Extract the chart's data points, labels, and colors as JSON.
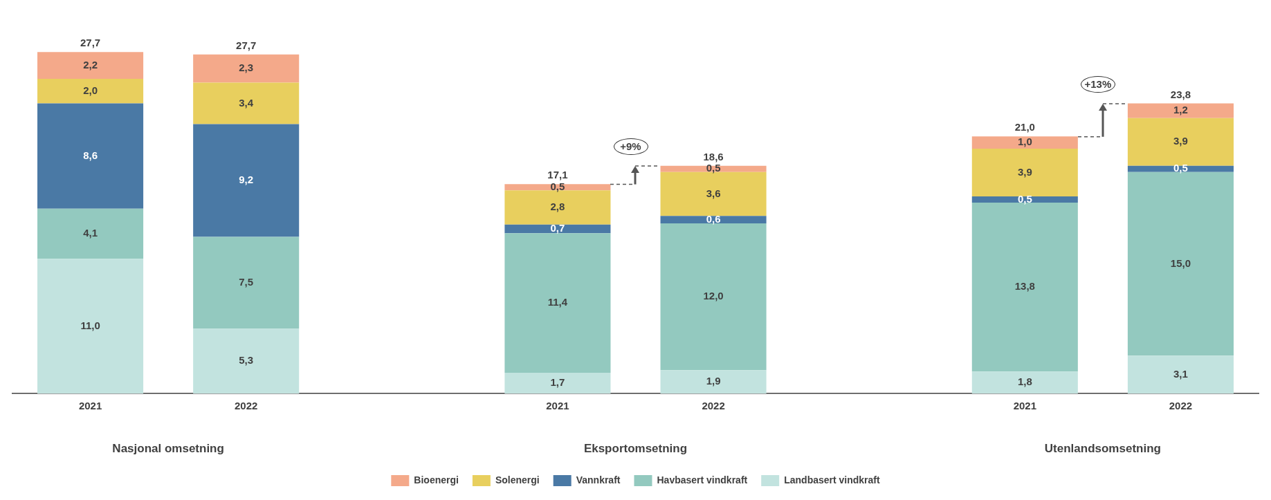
{
  "chart_data": {
    "type": "bar",
    "stacked": true,
    "legend": "bottom",
    "grid": false,
    "categories": [
      "2021",
      "2022",
      null,
      "2021",
      "2022",
      null,
      "2021",
      "2022"
    ],
    "series": [
      {
        "name": "Landbasert vindkraft",
        "color": "#c2e3df",
        "values": [
          11.0,
          5.3,
          null,
          1.7,
          1.9,
          null,
          1.8,
          3.1
        ],
        "value_labels": [
          "11,0",
          "5,3",
          null,
          "1,7",
          "1,9",
          null,
          "1,8",
          "3,1"
        ]
      },
      {
        "name": "Havbasert vindkraft",
        "color": "#93c9bf",
        "values": [
          4.1,
          7.5,
          null,
          11.4,
          12.0,
          null,
          13.8,
          15.0
        ],
        "value_labels": [
          "4,1",
          "7,5",
          null,
          "11,4",
          "12,0",
          null,
          "13,8",
          "15,0"
        ]
      },
      {
        "name": "Vannkraft",
        "color": "#4a79a5",
        "values": [
          8.6,
          9.2,
          null,
          0.7,
          0.6,
          null,
          0.5,
          0.5
        ],
        "value_labels": [
          "8,6",
          "9,2",
          null,
          "0,7",
          "0,6",
          null,
          "0,5",
          "0,5"
        ]
      },
      {
        "name": "Solenergi",
        "color": "#e8cf5e",
        "values": [
          2.0,
          3.4,
          null,
          2.8,
          3.6,
          null,
          3.9,
          3.9
        ],
        "value_labels": [
          "2,0",
          "3,4",
          null,
          "2,8",
          "3,6",
          null,
          "3,9",
          "3,9"
        ]
      },
      {
        "name": "Bioenergi",
        "color": "#f4a98a",
        "values": [
          2.2,
          2.3,
          null,
          0.5,
          0.5,
          null,
          1.0,
          1.2
        ],
        "value_labels": [
          "2,2",
          "2,3",
          null,
          "0,5",
          "0,5",
          null,
          "1,0",
          "1,2"
        ]
      }
    ],
    "totals": [
      "27,7",
      "27,7",
      null,
      "17,1",
      "18,6",
      null,
      "21,0",
      "23,8"
    ],
    "annotations": [
      "Nasjonal omsetning",
      "Eksportomsetning",
      "Utenlandsomsetning",
      "+9%",
      "+13%"
    ]
  }
}
